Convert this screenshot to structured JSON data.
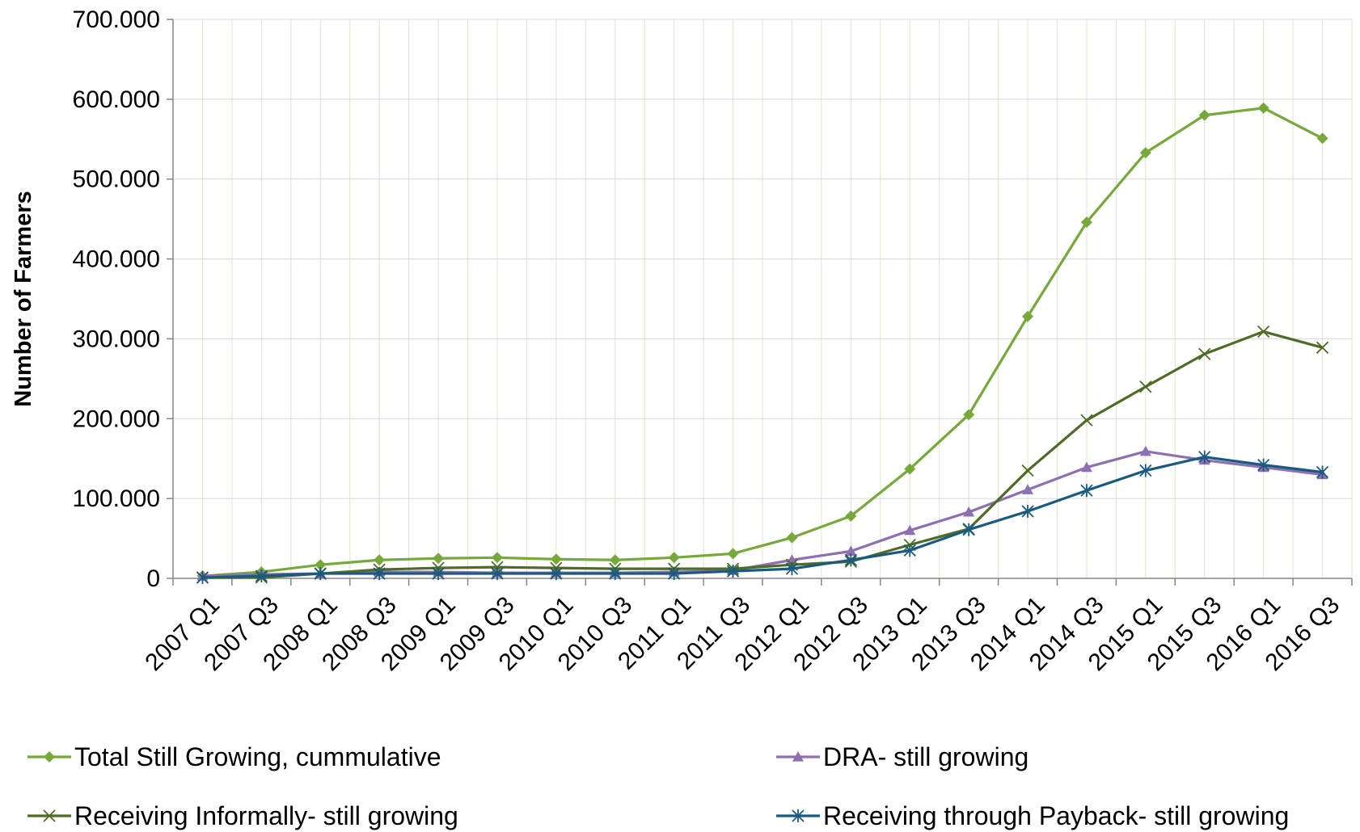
{
  "chart_data": {
    "type": "line",
    "title": "",
    "xlabel": "",
    "ylabel": "Number of Farmers",
    "ylim": [
      0,
      700000
    ],
    "y_ticks": [
      "0",
      "100.000",
      "200.000",
      "300.000",
      "400.000",
      "500.000",
      "600.000",
      "700.000"
    ],
    "x_tick_labels": [
      "2007 Q1",
      "2007 Q3",
      "2008 Q1",
      "2008 Q3",
      "2009 Q1",
      "2009 Q3",
      "2010 Q1",
      "2010 Q3",
      "2011 Q1",
      "2011 Q3",
      "2012 Q1",
      "2012 Q3",
      "2013 Q1",
      "2013 Q3",
      "2014 Q1",
      "2014 Q3",
      "2015 Q1",
      "2015 Q3",
      "2016 Q1",
      "2016 Q3"
    ],
    "grid": true,
    "legend_position": "bottom",
    "series": [
      {
        "name": "Total Still Growing, cummulative",
        "color": "#77A83A",
        "marker": "diamond",
        "values": [
          3000,
          8000,
          17000,
          23000,
          25000,
          26000,
          24000,
          23000,
          26000,
          31000,
          51000,
          78000,
          137000,
          205000,
          328000,
          446000,
          533000,
          580000,
          589000,
          551000
        ]
      },
      {
        "name": "DRA- still growing",
        "color": "#8E70B2",
        "marker": "triangle",
        "values": [
          3000,
          5000,
          6000,
          8000,
          8000,
          7000,
          7000,
          7000,
          8000,
          10000,
          23000,
          34000,
          60000,
          83000,
          111000,
          139000,
          159000,
          148000,
          139000,
          130000
        ]
      },
      {
        "name": "Receiving Informally- still growing",
        "color": "#4E6C26",
        "marker": "x",
        "values": [
          1000,
          1000,
          6000,
          11000,
          13000,
          14000,
          13000,
          12000,
          12000,
          12000,
          17000,
          21000,
          42000,
          62000,
          135000,
          198000,
          240000,
          281000,
          309000,
          289000
        ]
      },
      {
        "name": "Receiving through Payback- still growing",
        "color": "#1B5A80",
        "marker": "star",
        "values": [
          1000,
          3000,
          6000,
          6000,
          6000,
          6000,
          6000,
          6000,
          6000,
          9000,
          12000,
          23000,
          35000,
          61000,
          84000,
          110000,
          135000,
          152000,
          142000,
          133000
        ]
      }
    ]
  }
}
